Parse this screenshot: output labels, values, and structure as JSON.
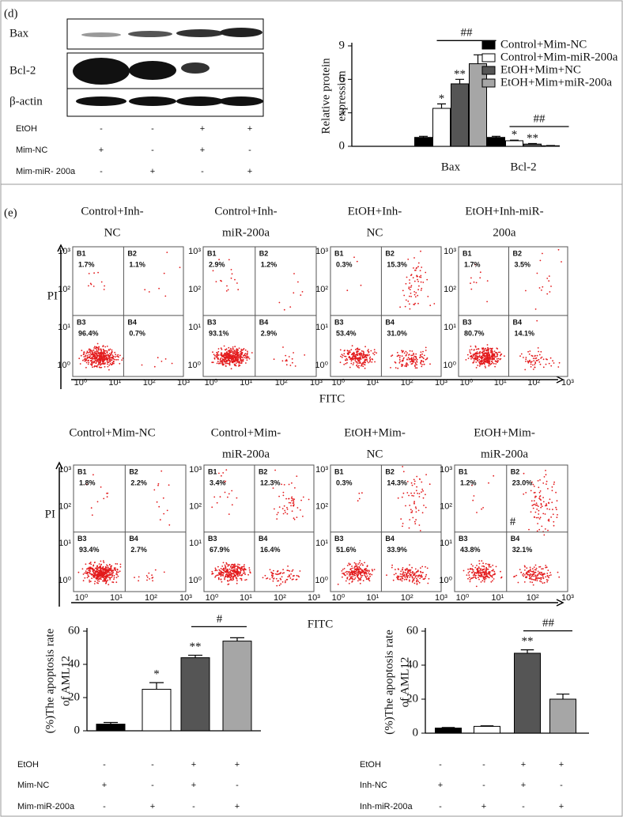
{
  "panel_d": {
    "label": "(d)",
    "blot_labels": [
      "Bax",
      "Bcl-2",
      "β-actin"
    ],
    "conditions": [
      {
        "name": "EtOH",
        "signs": [
          "-",
          "-",
          "+",
          "+"
        ]
      },
      {
        "name": "Mim-NC",
        "signs": [
          "+",
          "-",
          "+",
          "-"
        ]
      },
      {
        "name": "Mim-miR- 200a",
        "signs": [
          "-",
          "+",
          "-",
          "+"
        ]
      }
    ]
  },
  "panel_e": {
    "label": "(e)",
    "flow_xticks": [
      "10⁰",
      "10¹",
      "10²",
      "10³"
    ],
    "flow_yticks": [
      "10³",
      "10²",
      "10¹",
      "10⁰"
    ],
    "rows": [
      {
        "y_axis_label": "PI",
        "x_axis_label": "FITC",
        "plots": [
          {
            "title": [
              "Control+Inh-",
              "NC"
            ],
            "quadrants": [
              {
                "name": "B1",
                "label": "1.7%"
              },
              {
                "name": "B2",
                "label": "1.1%"
              },
              {
                "name": "B3",
                "label": "96.4%"
              },
              {
                "name": "B4",
                "label": "0.7%"
              }
            ]
          },
          {
            "title": [
              "Control+Inh-",
              "miR-200a"
            ],
            "quadrants": [
              {
                "name": "B1",
                "label": "2.9%"
              },
              {
                "name": "B2",
                "label": "1.2%"
              },
              {
                "name": "B3",
                "label": "93.1%"
              },
              {
                "name": "B4",
                "label": "2.9%"
              }
            ]
          },
          {
            "title": [
              "EtOH+Inh-",
              "NC"
            ],
            "quadrants": [
              {
                "name": "B1",
                "label": "0.3%"
              },
              {
                "name": "B2",
                "label": "15.3%"
              },
              {
                "name": "B3",
                "label": "53.4%"
              },
              {
                "name": "B4",
                "label": "31.0%"
              }
            ]
          },
          {
            "title": [
              "EtOH+Inh-miR-",
              "200a"
            ],
            "quadrants": [
              {
                "name": "B1",
                "label": "1.7%"
              },
              {
                "name": "B2",
                "label": "3.5%"
              },
              {
                "name": "B3",
                "label": "80.7%"
              },
              {
                "name": "B4",
                "label": "14.1%"
              }
            ]
          }
        ]
      },
      {
        "y_axis_label": "PI",
        "x_axis_label": "FITC",
        "plots": [
          {
            "title": [
              "Control+Mim-NC"
            ],
            "quadrants": [
              {
                "name": "B1",
                "label": "1.8%"
              },
              {
                "name": "B2",
                "label": "2.2%"
              },
              {
                "name": "B3",
                "label": "93.4%"
              },
              {
                "name": "B4",
                "label": "2.7%"
              }
            ]
          },
          {
            "title": [
              "Control+Mim-",
              "miR-200a"
            ],
            "quadrants": [
              {
                "name": "B1",
                "label": "3.4%"
              },
              {
                "name": "B2",
                "label": "12.3%"
              },
              {
                "name": "B3",
                "label": "67.9%"
              },
              {
                "name": "B4",
                "label": "16.4%"
              }
            ]
          },
          {
            "title": [
              "EtOH+Mim-",
              "NC"
            ],
            "quadrants": [
              {
                "name": "B1",
                "label": "0.3%"
              },
              {
                "name": "B2",
                "label": "14.3%"
              },
              {
                "name": "B3",
                "label": "51.6%"
              },
              {
                "name": "B4",
                "label": "33.9%"
              }
            ]
          },
          {
            "title": [
              "EtOH+Mim-",
              "miR-200a"
            ],
            "annotation": "#",
            "quadrants": [
              {
                "name": "B1",
                "label": "1.2%"
              },
              {
                "name": "B2",
                "label": "23.0%"
              },
              {
                "name": "B3",
                "label": "43.8%"
              },
              {
                "name": "B4",
                "label": "32.1%"
              }
            ]
          }
        ]
      }
    ]
  },
  "chart_data": [
    {
      "type": "grouped_bar",
      "ylabel": [
        "Relative protein",
        "expression"
      ],
      "categories": [
        "Bax",
        "Bcl-2"
      ],
      "ylim": [
        0,
        9
      ],
      "yticks": [
        0,
        3,
        6,
        9
      ],
      "bracket_labels": [
        "##",
        "##"
      ],
      "legend": "upper-right",
      "series": [
        {
          "name": "Control+Mim-NC",
          "color": "#000000",
          "values": [
            0.8,
            0.8
          ],
          "error": [
            0.1,
            0.1
          ],
          "annotations": [
            null,
            null
          ]
        },
        {
          "name": "Control+Mim-miR-200a",
          "color": "#ffffff",
          "values": [
            3.4,
            0.5
          ],
          "error": [
            0.4,
            0.05
          ],
          "annotations": [
            "*",
            "*"
          ]
        },
        {
          "name": "EtOH+Mim+NC",
          "color": "#555555",
          "values": [
            5.6,
            0.2
          ],
          "error": [
            0.4,
            0.05
          ],
          "annotations": [
            "**",
            "**"
          ]
        },
        {
          "name": "EtOH+Mim+miR-200a",
          "color": "#a6a6a6",
          "values": [
            7.4,
            0.05
          ],
          "error": [
            0.8,
            0.02
          ],
          "annotations": [
            null,
            null
          ]
        }
      ]
    },
    {
      "type": "bar",
      "ylabel": [
        "(%)The apoptosis rate",
        "of AML12"
      ],
      "ylim": [
        0,
        60
      ],
      "yticks": [
        0,
        20,
        40,
        60
      ],
      "values": [
        4,
        25,
        44,
        54
      ],
      "error": [
        1,
        4,
        1.5,
        2
      ],
      "colors": [
        "#000000",
        "#ffffff",
        "#555555",
        "#a6a6a6"
      ],
      "annotations": [
        null,
        "*",
        "**",
        null
      ],
      "bracket_label": "#",
      "conditions": [
        {
          "name": "EtOH",
          "signs": [
            "-",
            "-",
            "+",
            "+"
          ]
        },
        {
          "name": "Mim-NC",
          "signs": [
            "+",
            "-",
            "+",
            "-"
          ]
        },
        {
          "name": "Mim-miR-200a",
          "signs": [
            "-",
            "+",
            "-",
            "+"
          ]
        }
      ]
    },
    {
      "type": "bar",
      "ylabel": [
        "(%)The apoptosis rate",
        "of AML12"
      ],
      "ylim": [
        0,
        60
      ],
      "yticks": [
        0,
        20,
        40,
        60
      ],
      "values": [
        3,
        4,
        47,
        20
      ],
      "error": [
        0.3,
        0.3,
        2,
        3
      ],
      "colors": [
        "#000000",
        "#ffffff",
        "#555555",
        "#a6a6a6"
      ],
      "annotations": [
        null,
        null,
        "**",
        null
      ],
      "bracket_label": "##",
      "conditions": [
        {
          "name": "EtOH",
          "signs": [
            "-",
            "-",
            "+",
            "+"
          ]
        },
        {
          "name": "Inh-NC",
          "signs": [
            "+",
            "-",
            "+",
            "-"
          ]
        },
        {
          "name": "Inh-miR-200a",
          "signs": [
            "-",
            "+",
            "-",
            "+"
          ]
        }
      ]
    }
  ]
}
